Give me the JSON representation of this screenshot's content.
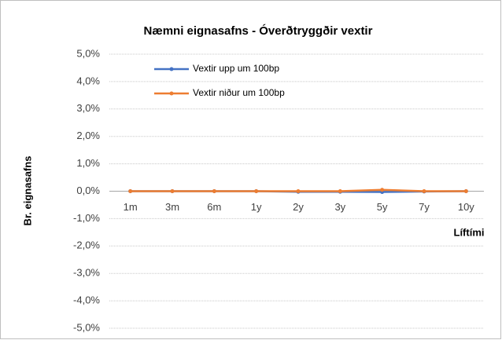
{
  "chart_data": {
    "type": "line",
    "title": "Næmni eignasafns - Óverðtryggðir vextir",
    "y_label": "Br. eignasafns",
    "x_label": "Líftími",
    "categories": [
      "1m",
      "3m",
      "6m",
      "1y",
      "2y",
      "3y",
      "5y",
      "7y",
      "10y"
    ],
    "series": [
      {
        "name": "Vextir upp um 100bp",
        "color": "#4472c4",
        "values": [
          0,
          0,
          0,
          0,
          -0.02,
          -0.02,
          -0.03,
          -0.01,
          0
        ]
      },
      {
        "name": "Vextir niður um 100bp",
        "color": "#ed7d31",
        "values": [
          0,
          0,
          0,
          0,
          0,
          0,
          0.05,
          0,
          0
        ]
      }
    ],
    "ylim": [
      -5,
      5
    ],
    "yticks": [
      {
        "value": -5,
        "label": "-5,0%"
      },
      {
        "value": -4,
        "label": "-4,0%"
      },
      {
        "value": -3,
        "label": "-3,0%"
      },
      {
        "value": -2,
        "label": "-2,0%"
      },
      {
        "value": -1,
        "label": "-1,0%"
      },
      {
        "value": 0,
        "label": "0,0%"
      },
      {
        "value": 1,
        "label": "1,0%"
      },
      {
        "value": 2,
        "label": "2,0%"
      },
      {
        "value": 3,
        "label": "3,0%"
      },
      {
        "value": 4,
        "label": "4,0%"
      },
      {
        "value": 5,
        "label": "5,0%"
      }
    ],
    "grid": true,
    "legend": "top-left"
  }
}
